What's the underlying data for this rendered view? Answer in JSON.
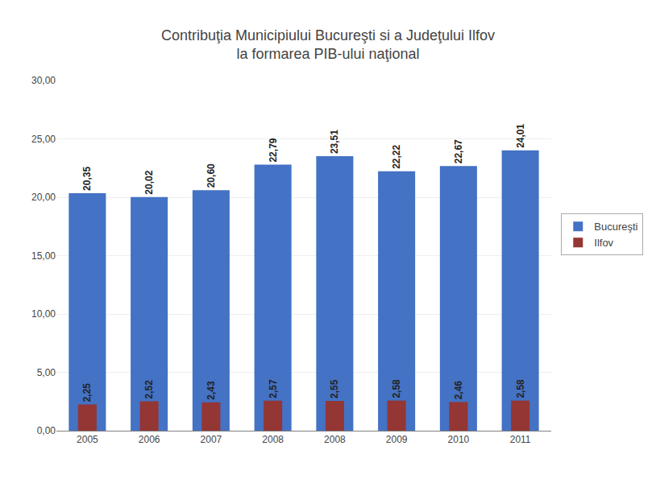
{
  "chart_data": {
    "type": "bar",
    "title": "Contribuţia Municipiului Bucureşti si a Judeţului Ilfov\nla formarea PIB-ului naţional",
    "categories": [
      "2005",
      "2006",
      "2007",
      "2008",
      "2008",
      "2009",
      "2010",
      "2011"
    ],
    "series": [
      {
        "name": "Bucureşti",
        "color": "#4472C4",
        "values": [
          20.35,
          20.02,
          20.6,
          22.79,
          23.51,
          22.22,
          22.67,
          24.01
        ],
        "value_labels": [
          "20,35",
          "20,02",
          "20,60",
          "22,79",
          "23,51",
          "22,22",
          "22,67",
          "24,01"
        ]
      },
      {
        "name": "Ilfov",
        "color": "#943634",
        "values": [
          2.25,
          2.52,
          2.43,
          2.57,
          2.55,
          2.58,
          2.46,
          2.58
        ],
        "value_labels": [
          "2,25",
          "2,52",
          "2,43",
          "2,57",
          "2,55",
          "2,58",
          "2,46",
          "2,58"
        ]
      }
    ],
    "ylim": [
      0,
      30
    ],
    "yticks": [
      {
        "value": 0,
        "label": "0,00"
      },
      {
        "value": 5,
        "label": "5,00"
      },
      {
        "value": 10,
        "label": "10,00"
      },
      {
        "value": 15,
        "label": "15,00"
      },
      {
        "value": 20,
        "label": "20,00"
      },
      {
        "value": 25,
        "label": "25,00"
      },
      {
        "value": 30,
        "label": "30,00"
      }
    ],
    "grid": true,
    "legend": "right",
    "data_labels": true
  }
}
